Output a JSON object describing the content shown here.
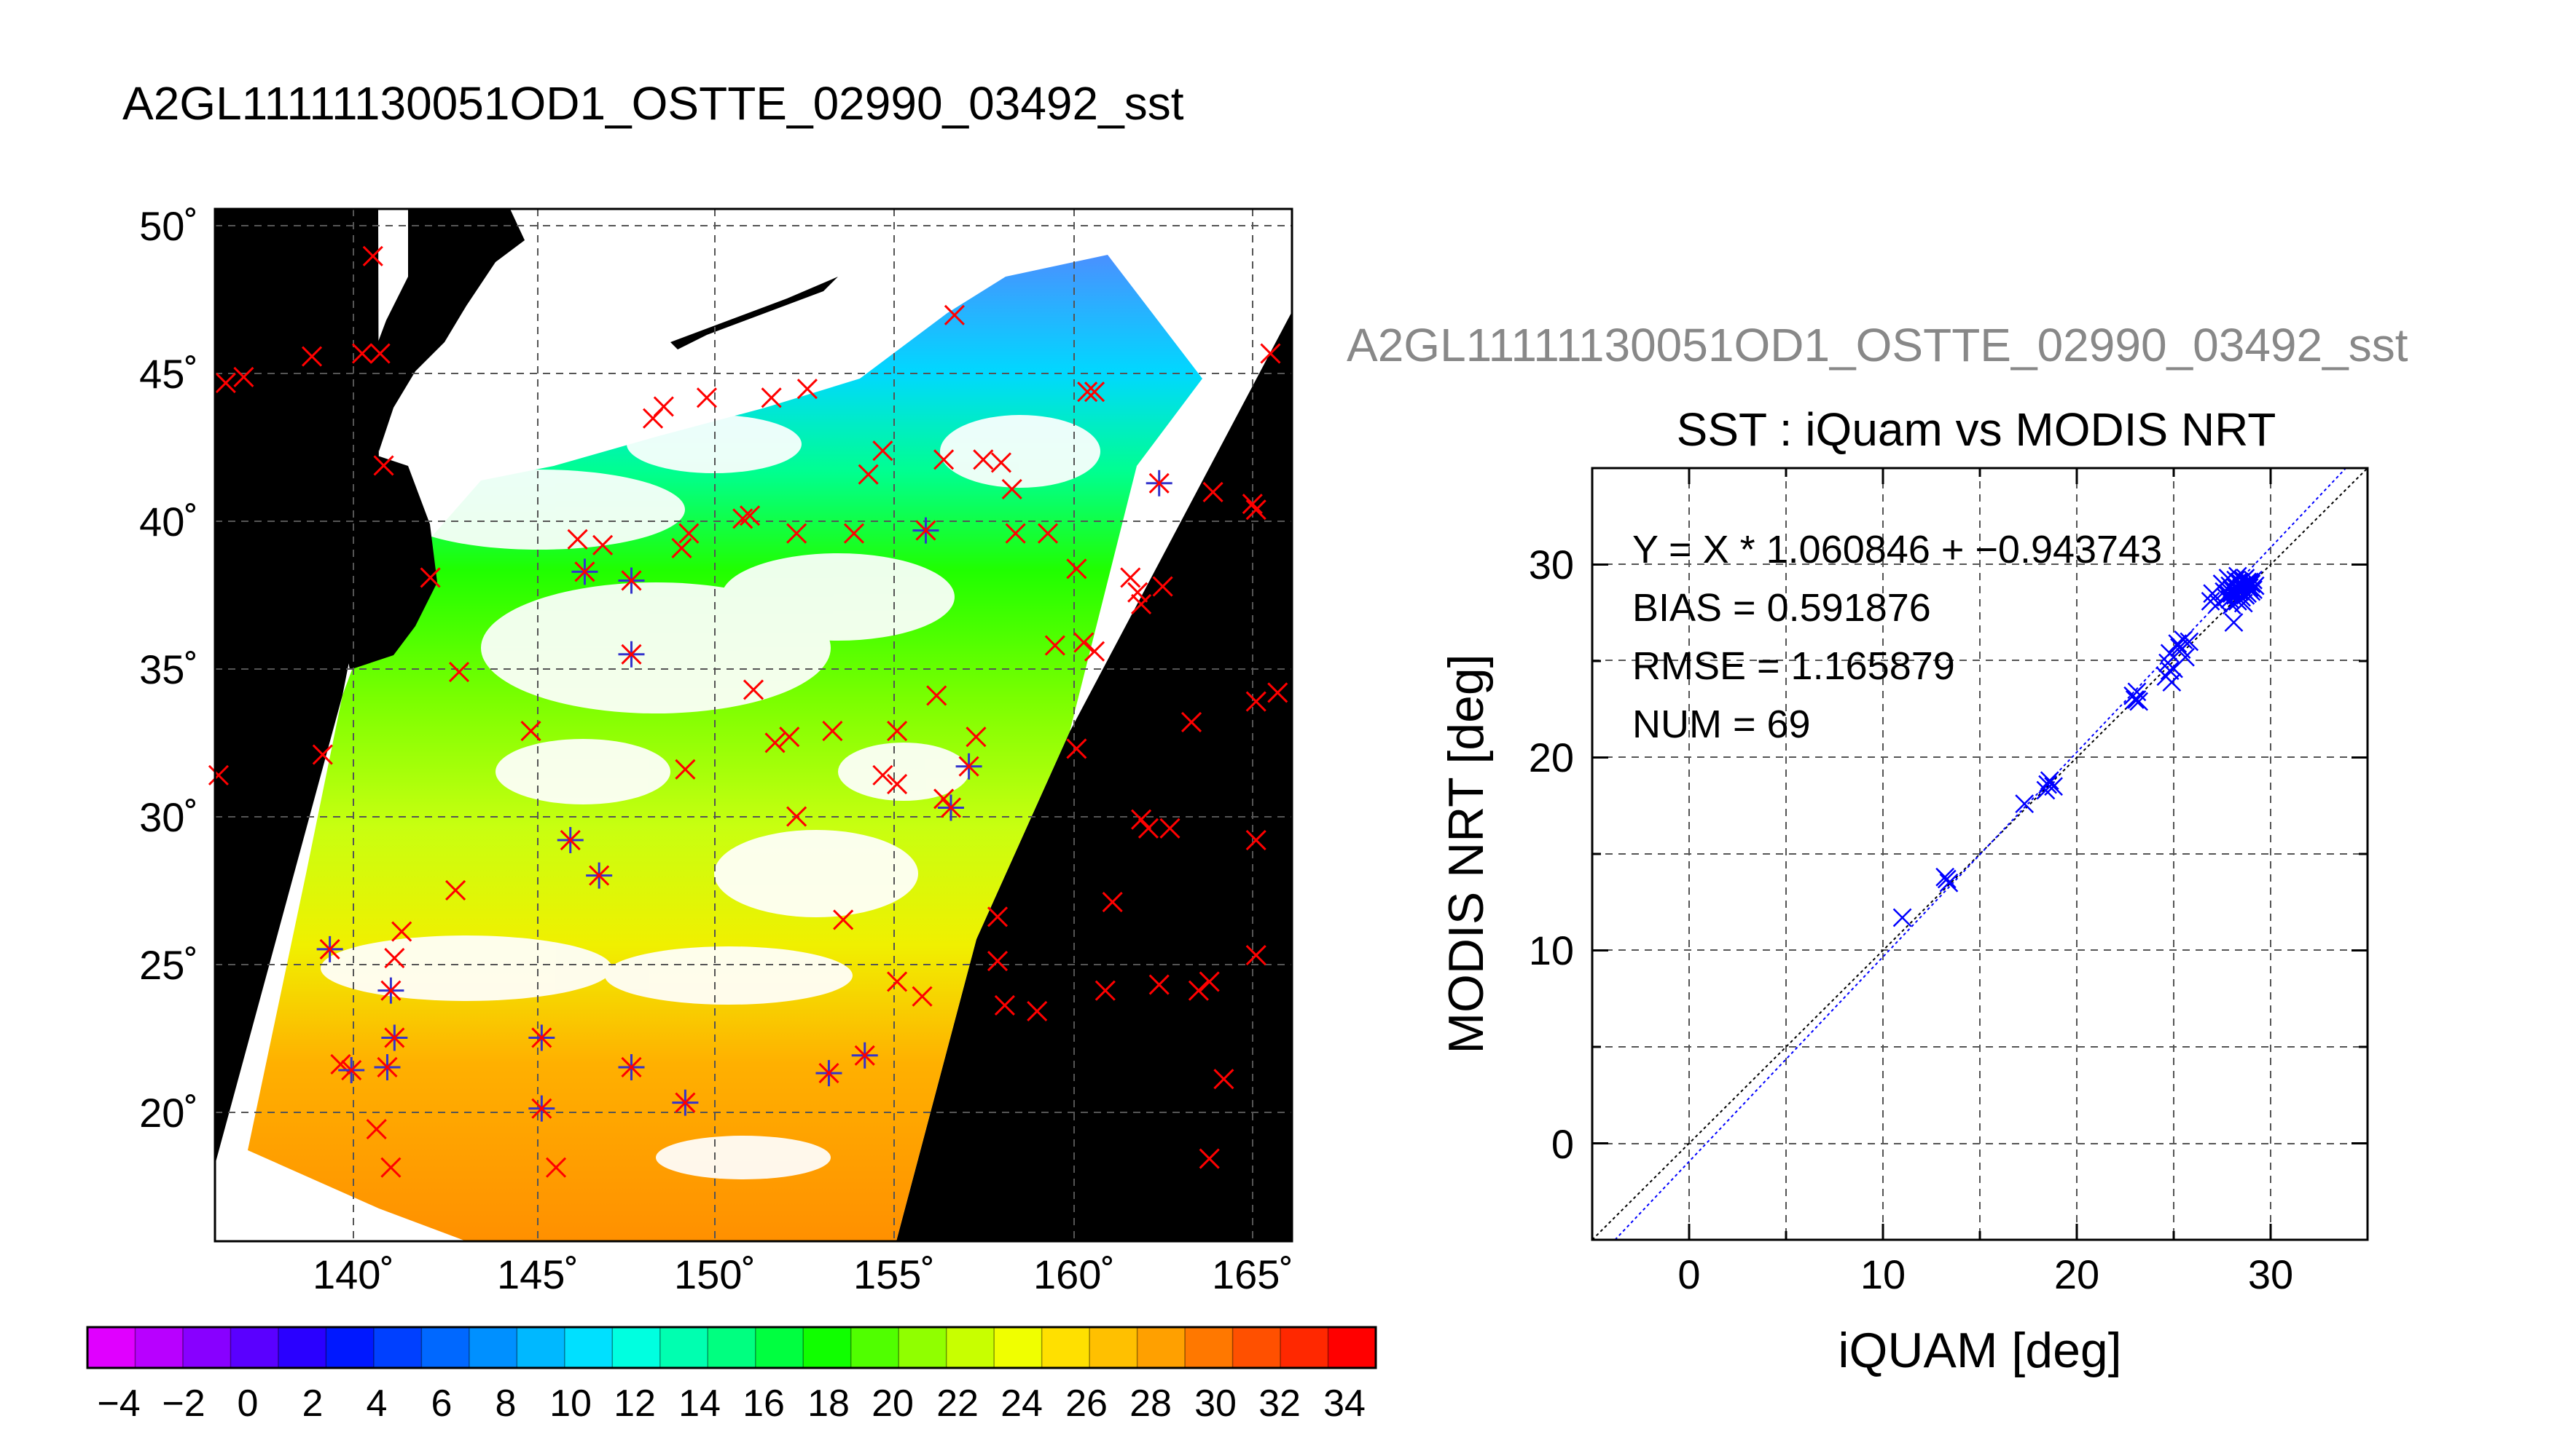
{
  "figure": {
    "main_title": "A2GL11111130051OD1_OSTTE_02990_03492_sst",
    "scatter_suptitle": "A2GL11111130051OD1_OSTTE_02990_03492_sst"
  },
  "map": {
    "lon_range": [
      136,
      166
    ],
    "lat_range": [
      15.5,
      50.5
    ],
    "lon_ticks": [
      140,
      145,
      150,
      155,
      160,
      165
    ],
    "lat_ticks": [
      20,
      25,
      30,
      35,
      40,
      45,
      50
    ],
    "lon_labels": [
      "140˚",
      "145˚",
      "150˚",
      "155˚",
      "160˚",
      "165˚"
    ],
    "lat_labels": [
      "20˚",
      "25˚",
      "30˚",
      "35˚",
      "40˚",
      "45˚",
      "50˚"
    ],
    "grid": true,
    "land_color": "#000000",
    "cloud_color": "#ffffff",
    "iquam_all_color": "#ff0000",
    "matched_color": "#3333cc"
  },
  "colorbar": {
    "min": -5,
    "max": 35,
    "tick_labels": [
      "−4",
      "−2",
      "0",
      "2",
      "4",
      "6",
      "8",
      "10",
      "12",
      "14",
      "16",
      "18",
      "20",
      "22",
      "24",
      "26",
      "28",
      "30",
      "32",
      "34"
    ],
    "colors": [
      "#e000ff",
      "#b800ff",
      "#8800ff",
      "#5a00ff",
      "#2a00ff",
      "#0018ff",
      "#0040ff",
      "#0068ff",
      "#0090ff",
      "#00b8ff",
      "#00e0ff",
      "#00ffe0",
      "#00ffb0",
      "#00ff80",
      "#00ff40",
      "#10ff00",
      "#50ff00",
      "#90ff00",
      "#c8ff00",
      "#f0ff00",
      "#ffe000",
      "#ffc000",
      "#ffa000",
      "#ff7800",
      "#ff5000",
      "#ff2800",
      "#ff0000"
    ]
  },
  "chart_data": [
    {
      "type": "scatter",
      "title": "SST : iQuam vs MODIS NRT",
      "xlabel": "iQUAM [deg]",
      "ylabel": "MODIS NRT [deg]",
      "xlim": [
        -5,
        35
      ],
      "ylim": [
        -5,
        35
      ],
      "xticks": [
        0,
        10,
        20,
        30
      ],
      "yticks": [
        0,
        10,
        20,
        30
      ],
      "xtick_labels": [
        "0",
        "10",
        "20",
        "30"
      ],
      "ytick_labels": [
        "0",
        "10",
        "20",
        "30"
      ],
      "grid": true,
      "marker_color": "#0000ff",
      "fit": {
        "slope": 1.060846,
        "intercept": -0.943743
      },
      "annotations": [
        "Y = X * 1.060846 + −0.943743",
        "BIAS = 0.591876",
        "RMSE = 1.165879",
        "NUM = 69"
      ],
      "points": [
        [
          11.0,
          11.7
        ],
        [
          13.2,
          13.8
        ],
        [
          13.4,
          13.5
        ],
        [
          17.3,
          17.6
        ],
        [
          18.4,
          18.3
        ],
        [
          18.6,
          18.8
        ],
        [
          18.8,
          18.5
        ],
        [
          22.9,
          23.2
        ],
        [
          23.0,
          23.0
        ],
        [
          23.1,
          23.4
        ],
        [
          23.2,
          22.9
        ],
        [
          24.6,
          24.2
        ],
        [
          24.7,
          24.9
        ],
        [
          24.8,
          25.4
        ],
        [
          24.9,
          23.9
        ],
        [
          25.0,
          24.6
        ],
        [
          25.2,
          25.9
        ],
        [
          25.4,
          25.6
        ],
        [
          25.5,
          26.1
        ],
        [
          25.6,
          25.2
        ],
        [
          25.8,
          26.0
        ],
        [
          26.9,
          28.1
        ],
        [
          27.0,
          28.5
        ],
        [
          27.3,
          28.0
        ],
        [
          27.5,
          29.0
        ],
        [
          27.6,
          28.6
        ],
        [
          27.7,
          28.3
        ],
        [
          27.8,
          29.3
        ],
        [
          27.9,
          28.9
        ],
        [
          28.0,
          27.9
        ],
        [
          28.0,
          28.5
        ],
        [
          28.1,
          29.0
        ],
        [
          28.1,
          27.0
        ],
        [
          28.2,
          28.4
        ],
        [
          28.2,
          29.2
        ],
        [
          28.3,
          28.8
        ],
        [
          28.3,
          28.1
        ],
        [
          28.4,
          29.1
        ],
        [
          28.4,
          28.6
        ],
        [
          28.5,
          28.9
        ],
        [
          28.5,
          28.3
        ],
        [
          28.6,
          29.2
        ],
        [
          28.6,
          28.7
        ],
        [
          28.7,
          29.0
        ],
        [
          28.7,
          28.4
        ],
        [
          28.8,
          29.1
        ],
        [
          28.9,
          28.8
        ],
        [
          29.0,
          29.0
        ],
        [
          29.0,
          28.6
        ],
        [
          29.1,
          29.2
        ],
        [
          29.2,
          28.9
        ],
        [
          28.0,
          28.7
        ],
        [
          27.9,
          28.2
        ],
        [
          28.3,
          29.4
        ],
        [
          28.6,
          28.0
        ],
        [
          25.3,
          25.7
        ],
        [
          24.8,
          24.5
        ],
        [
          23.1,
          23.0
        ],
        [
          18.5,
          18.6
        ],
        [
          13.3,
          13.7
        ],
        [
          28.8,
          28.5
        ],
        [
          28.2,
          28.8
        ],
        [
          28.4,
          29.0
        ],
        [
          29.1,
          28.7
        ],
        [
          27.8,
          28.5
        ],
        [
          28.7,
          29.3
        ],
        [
          28.9,
          29.1
        ],
        [
          28.1,
          28.6
        ],
        [
          28.5,
          28.8
        ]
      ]
    },
    {
      "type": "scatter",
      "title": "",
      "series": [
        {
          "name": "",
          "marker": "x",
          "color": "#ff0000",
          "points": [
            [
              136.1,
              31.3
            ],
            [
              136.3,
              44.6
            ],
            [
              136.8,
              44.8
            ],
            [
              138.7,
              45.5
            ],
            [
              139.0,
              32.0
            ],
            [
              139.5,
              21.5
            ],
            [
              140.1,
              45.6
            ],
            [
              140.4,
              48.9
            ],
            [
              140.6,
              45.6
            ],
            [
              140.7,
              41.8
            ],
            [
              140.5,
              19.3
            ],
            [
              140.9,
              18.0
            ],
            [
              141.0,
              25.1
            ],
            [
              141.2,
              26.0
            ],
            [
              142.0,
              38.0
            ],
            [
              142.8,
              34.8
            ],
            [
              142.7,
              27.4
            ],
            [
              144.8,
              32.8
            ],
            [
              146.1,
              39.3
            ],
            [
              146.8,
              39.1
            ],
            [
              145.5,
              18.0
            ],
            [
              148.2,
              43.4
            ],
            [
              148.5,
              43.8
            ],
            [
              149.0,
              39.0
            ],
            [
              149.2,
              39.5
            ],
            [
              149.7,
              44.1
            ],
            [
              149.1,
              31.5
            ],
            [
              150.7,
              40.0
            ],
            [
              150.9,
              40.1
            ],
            [
              151.0,
              34.2
            ],
            [
              151.5,
              44.1
            ],
            [
              151.6,
              32.4
            ],
            [
              152.0,
              32.6
            ],
            [
              152.2,
              39.5
            ],
            [
              152.5,
              44.4
            ],
            [
              152.2,
              29.9
            ],
            [
              153.2,
              32.8
            ],
            [
              153.5,
              26.4
            ],
            [
              153.8,
              39.5
            ],
            [
              154.2,
              41.5
            ],
            [
              154.6,
              42.3
            ],
            [
              154.6,
              31.3
            ],
            [
              155.0,
              31.0
            ],
            [
              155.0,
              32.8
            ],
            [
              155.0,
              24.3
            ],
            [
              155.7,
              23.8
            ],
            [
              156.1,
              34.0
            ],
            [
              156.3,
              42.0
            ],
            [
              156.6,
              46.9
            ],
            [
              156.3,
              30.5
            ],
            [
              157.2,
              32.6
            ],
            [
              157.4,
              42.0
            ],
            [
              157.8,
              26.5
            ],
            [
              157.8,
              25.0
            ],
            [
              157.9,
              41.9
            ],
            [
              158.2,
              41.0
            ],
            [
              158.3,
              39.5
            ],
            [
              158.0,
              23.5
            ],
            [
              158.9,
              23.3
            ],
            [
              159.2,
              39.5
            ],
            [
              159.4,
              35.7
            ],
            [
              160.0,
              38.3
            ],
            [
              160.0,
              32.2
            ],
            [
              160.2,
              35.8
            ],
            [
              160.3,
              44.3
            ],
            [
              160.5,
              44.3
            ],
            [
              160.5,
              35.5
            ],
            [
              160.8,
              24.0
            ],
            [
              161.0,
              27.0
            ],
            [
              161.5,
              38.0
            ],
            [
              161.7,
              37.5
            ],
            [
              161.8,
              29.8
            ],
            [
              161.8,
              37.1
            ],
            [
              162.0,
              29.5
            ],
            [
              162.3,
              24.2
            ],
            [
              162.4,
              37.7
            ],
            [
              162.6,
              29.5
            ],
            [
              163.2,
              33.1
            ],
            [
              163.4,
              24.0
            ],
            [
              163.7,
              24.3
            ],
            [
              163.8,
              40.9
            ],
            [
              164.1,
              21.0
            ],
            [
              163.7,
              18.3
            ],
            [
              164.9,
              40.5
            ],
            [
              165.0,
              33.8
            ],
            [
              165.0,
              29.1
            ],
            [
              165.0,
              25.2
            ],
            [
              165.4,
              45.6
            ],
            [
              165.6,
              34.1
            ],
            [
              165.0,
              40.3
            ]
          ]
        },
        {
          "name": "",
          "marker": "asterisk",
          "color": "#3333cc",
          "points": [
            [
              139.2,
              25.4
            ],
            [
              139.8,
              21.3
            ],
            [
              140.8,
              21.4
            ],
            [
              141.0,
              22.4
            ],
            [
              140.9,
              24.0
            ],
            [
              145.9,
              29.1
            ],
            [
              146.7,
              27.9
            ],
            [
              145.1,
              22.4
            ],
            [
              145.1,
              20.0
            ],
            [
              146.3,
              38.2
            ],
            [
              147.6,
              37.9
            ],
            [
              147.6,
              35.4
            ],
            [
              147.6,
              21.4
            ],
            [
              149.1,
              20.2
            ],
            [
              153.1,
              21.2
            ],
            [
              154.1,
              21.8
            ],
            [
              155.8,
              39.6
            ],
            [
              156.5,
              30.2
            ],
            [
              157.0,
              31.6
            ],
            [
              162.3,
              41.2
            ]
          ]
        }
      ]
    }
  ]
}
